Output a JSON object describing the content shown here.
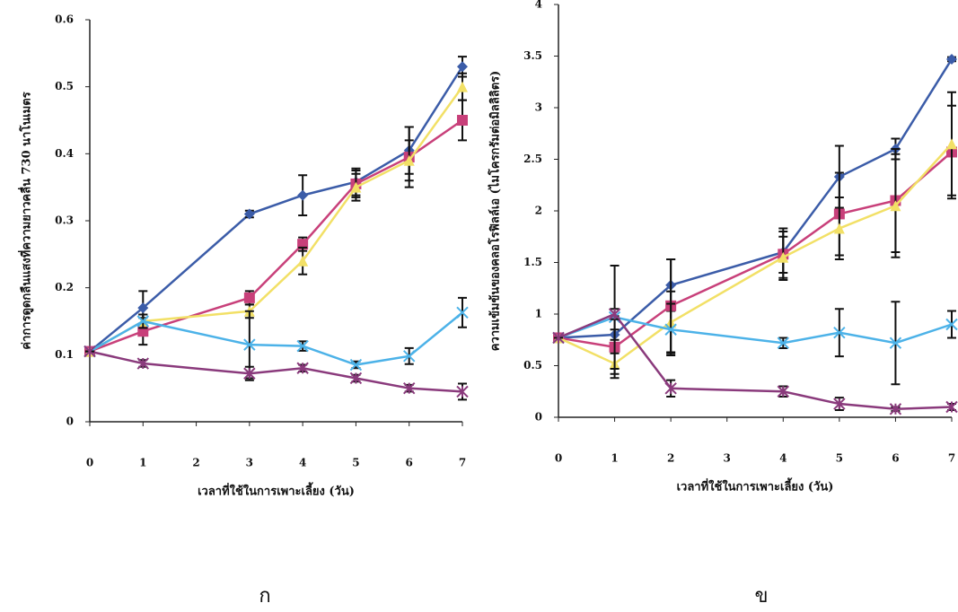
{
  "chart_data": [
    {
      "type": "line",
      "xlabel": "เวลาที่ใช้ในการเพาะเลี้ยง (วัน)",
      "ylabel": "ค่าการดูดกลืนแสงที่ความยาวคลื่น 730 นาโนเมตร",
      "caption": "ก",
      "xlim": [
        0,
        7
      ],
      "xticks": [
        0,
        1,
        2,
        3,
        4,
        5,
        6,
        7
      ],
      "ylim": [
        0,
        0.6
      ],
      "yticks": [
        0,
        0.1,
        0.2,
        0.3,
        0.4,
        0.5,
        0.6
      ],
      "x": [
        0,
        1,
        3,
        4,
        5,
        6,
        7
      ],
      "series": [
        {
          "color": "#3b5ca8",
          "marker": "diamond",
          "values": [
            0.105,
            0.17,
            0.31,
            0.338,
            0.358,
            0.405,
            0.53
          ],
          "errors": [
            0,
            0.025,
            0.005,
            0.03,
            0.02,
            0.035,
            0.015
          ]
        },
        {
          "color": "#c8407a",
          "marker": "square",
          "values": [
            0.105,
            0.135,
            0.185,
            0.265,
            0.355,
            0.395,
            0.45
          ],
          "errors": [
            0,
            0.02,
            0.01,
            0.01,
            0.02,
            0.045,
            0.03
          ]
        },
        {
          "color": "#f2e066",
          "marker": "triangle",
          "values": [
            0.105,
            0.15,
            0.165,
            0.24,
            0.35,
            0.39,
            0.5
          ],
          "errors": [
            0,
            0.01,
            0.01,
            0.02,
            0.02,
            0.03,
            0.02
          ]
        },
        {
          "color": "#4cb2e8",
          "marker": "x",
          "values": [
            0.105,
            0.15,
            0.115,
            0.113,
            0.085,
            0.098,
            0.163
          ],
          "errors": [
            0,
            0.01,
            0.05,
            0.007,
            0.005,
            0.012,
            0.022
          ]
        },
        {
          "color": "#8a3a7c",
          "marker": "star",
          "values": [
            0.105,
            0.087,
            0.072,
            0.08,
            0.065,
            0.05,
            0.045
          ],
          "errors": [
            0,
            0.005,
            0.01,
            0.005,
            0.005,
            0.005,
            0.012
          ]
        }
      ]
    },
    {
      "type": "line",
      "xlabel": "เวลาที่ใช้ในการเพาะเลี้ยง (วัน)",
      "ylabel": "ความเข้มข้นของคลอโรฟิลล์เอ (ไมโครกรัมต่อมิลลิลิตร)",
      "caption": "ข",
      "xlim": [
        0,
        7
      ],
      "xticks": [
        0,
        1,
        2,
        3,
        4,
        5,
        6,
        7
      ],
      "ylim": [
        0,
        4
      ],
      "yticks": [
        0,
        0.5,
        1,
        1.5,
        2,
        2.5,
        3,
        3.5,
        4
      ],
      "x": [
        0,
        1,
        2,
        4,
        5,
        6,
        7
      ],
      "series": [
        {
          "color": "#3b5ca8",
          "marker": "diamond",
          "values": [
            0.77,
            0.8,
            1.28,
            1.6,
            2.33,
            2.6,
            3.47
          ],
          "errors": [
            0,
            0.05,
            0.25,
            0.2,
            0.3,
            0.1,
            0.02
          ]
        },
        {
          "color": "#c8407a",
          "marker": "square",
          "values": [
            0.77,
            0.68,
            1.08,
            1.58,
            1.97,
            2.1,
            2.57
          ],
          "errors": [
            0,
            0.3,
            0.45,
            0.25,
            0.4,
            0.5,
            0.45
          ]
        },
        {
          "color": "#f2e066",
          "marker": "triangle",
          "values": [
            0.77,
            0.52,
            0.92,
            1.55,
            1.83,
            2.05,
            2.65
          ],
          "errors": [
            0,
            0.1,
            0.3,
            0.2,
            0.3,
            0.5,
            0.5
          ]
        },
        {
          "color": "#4cb2e8",
          "marker": "x",
          "values": [
            0.77,
            0.97,
            0.85,
            0.72,
            0.82,
            0.72,
            0.9
          ],
          "errors": [
            0,
            0.5,
            0.25,
            0.05,
            0.23,
            0.4,
            0.13
          ]
        },
        {
          "color": "#8a3a7c",
          "marker": "star",
          "values": [
            0.77,
            1.0,
            0.28,
            0.25,
            0.13,
            0.08,
            0.1
          ],
          "errors": [
            0,
            0.05,
            0.08,
            0.05,
            0.06,
            0.02,
            0.03
          ]
        }
      ]
    }
  ]
}
